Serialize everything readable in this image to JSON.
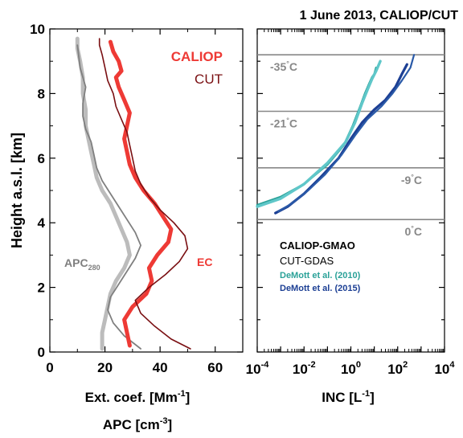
{
  "title": "1 June 2013, CALIOP/CUT",
  "colors": {
    "caliop_ec": "#ee3a35",
    "cut_ec": "#7a0f12",
    "apc_caliop": "#bcbcbc",
    "apc_cut": "#7f7f7f",
    "demott2010": "#2aa198",
    "demott2015": "#1c3f94",
    "isotherm": "#888888"
  },
  "chart_data": [
    {
      "type": "line",
      "panel": "left",
      "ylabel": "Height a.s.l. [km]",
      "xlabel_lines": [
        "Ext. coef. [Mm",
        "-1",
        "]"
      ],
      "xlabel2_lines": [
        "APC [cm",
        "-3",
        "]"
      ],
      "xlim": [
        0,
        70
      ],
      "ylim": [
        0,
        10
      ],
      "x_ticks": [
        "0",
        "20",
        "40",
        "60"
      ],
      "y_ticks": [
        "0",
        "2",
        "4",
        "6",
        "8",
        "10"
      ],
      "legend": [
        "CALIOP",
        "CUT"
      ],
      "annotations": {
        "ec": "EC",
        "apc": "APC",
        "apc_sub": "280"
      },
      "series": [
        {
          "name": "CALIOP",
          "role": "ec_caliop",
          "x": [
            29,
            28,
            27,
            30,
            35,
            37,
            36,
            39,
            43,
            44,
            41,
            38,
            34,
            31,
            29,
            28,
            27,
            28,
            29,
            27,
            25,
            24,
            26,
            25,
            23,
            22
          ],
          "y": [
            0.2,
            0.6,
            1.0,
            1.4,
            1.8,
            2.2,
            2.6,
            3.0,
            3.4,
            3.8,
            4.2,
            4.6,
            5.0,
            5.4,
            5.8,
            6.2,
            6.6,
            7.0,
            7.4,
            7.8,
            8.2,
            8.5,
            8.7,
            9.0,
            9.3,
            9.6
          ]
        },
        {
          "name": "CUT",
          "role": "ec_cut",
          "x": [
            51,
            44,
            38,
            33,
            31,
            36,
            42,
            47,
            50,
            49,
            45,
            40,
            36,
            33,
            31,
            30,
            29,
            28,
            26,
            24,
            23,
            21,
            20,
            19,
            18,
            18
          ],
          "y": [
            0.1,
            0.4,
            0.8,
            1.2,
            1.6,
            2.0,
            2.4,
            2.8,
            3.2,
            3.6,
            4.0,
            4.4,
            4.8,
            5.2,
            5.6,
            6.0,
            6.4,
            6.8,
            7.2,
            7.6,
            8.0,
            8.4,
            8.8,
            9.2,
            9.5,
            9.7
          ]
        },
        {
          "name": "APC CALIOP",
          "role": "apc_caliop",
          "x": [
            19,
            19,
            20,
            21,
            22,
            24,
            27,
            29,
            28,
            26,
            24,
            22,
            19,
            17,
            16,
            15,
            14,
            13,
            13,
            12,
            12,
            11,
            10,
            10
          ],
          "y": [
            0.1,
            0.6,
            1.0,
            1.4,
            1.8,
            2.2,
            2.6,
            3.0,
            3.4,
            3.8,
            4.2,
            4.6,
            5.0,
            5.4,
            5.8,
            6.2,
            6.6,
            7.0,
            7.5,
            8.0,
            8.5,
            9.0,
            9.4,
            9.7
          ]
        },
        {
          "name": "APC CUT",
          "role": "apc_cut",
          "x": [
            33,
            27,
            23,
            21,
            22,
            25,
            28,
            31,
            33,
            31,
            28,
            25,
            22,
            19,
            17,
            16,
            15,
            13,
            12,
            12,
            13,
            11,
            10
          ],
          "y": [
            0.1,
            0.5,
            0.9,
            1.3,
            1.7,
            2.1,
            2.5,
            2.9,
            3.3,
            3.7,
            4.1,
            4.5,
            4.9,
            5.3,
            5.7,
            6.1,
            6.5,
            6.9,
            7.3,
            7.7,
            8.2,
            8.8,
            9.5
          ]
        }
      ]
    },
    {
      "type": "line",
      "panel": "right",
      "xlabel_lines": [
        "INC [L",
        "-1",
        "]"
      ],
      "x_scale": "log",
      "xlim": [
        0.0001,
        10000
      ],
      "ylim": [
        0,
        10
      ],
      "x_tick_exponents": [
        "-4",
        "-2",
        "0",
        "2",
        "4"
      ],
      "isotherms": [
        {
          "height_km": 9.2,
          "label_base": "-35",
          "label_unit": "C"
        },
        {
          "height_km": 7.45,
          "label_base": "-21",
          "label_unit": "C"
        },
        {
          "height_km": 5.7,
          "label_base": "-9",
          "label_unit": "C"
        },
        {
          "height_km": 4.1,
          "label_base": "0",
          "label_unit": "C"
        }
      ],
      "legend": [
        "CALIOP-GMAO",
        "CUT-GDAS",
        "DeMott et al. (2010)",
        "DeMott et al. (2015)"
      ],
      "series": [
        {
          "name": "DeMott et al. (2010) CALIOP",
          "role": "d10a",
          "x": [
            0.0001,
            0.001,
            0.01,
            0.1,
            0.5,
            1.2,
            2.5,
            4,
            6,
            8,
            10,
            12
          ],
          "y": [
            4.55,
            4.8,
            5.2,
            5.8,
            6.4,
            7.0,
            7.6,
            8.0,
            8.3,
            8.5,
            8.6,
            8.8
          ]
        },
        {
          "name": "DeMott et al. (2010) CUT",
          "role": "d10b",
          "x": [
            0.0001,
            0.001,
            0.01,
            0.1,
            0.6,
            1.5,
            3,
            5,
            8,
            12,
            18
          ],
          "y": [
            4.5,
            4.75,
            5.2,
            5.85,
            6.5,
            7.1,
            7.7,
            8.1,
            8.45,
            8.7,
            9.0
          ]
        },
        {
          "name": "DeMott et al. (2015) CALIOP",
          "role": "d15a",
          "x": [
            0.0006,
            0.002,
            0.01,
            0.05,
            0.3,
            1,
            3,
            10,
            30,
            80,
            150,
            250
          ],
          "y": [
            4.3,
            4.5,
            4.9,
            5.4,
            6.0,
            6.6,
            7.1,
            7.5,
            7.8,
            8.2,
            8.6,
            8.9
          ]
        },
        {
          "name": "DeMott et al. (2015) CUT",
          "role": "d15b",
          "x": [
            0.0008,
            0.003,
            0.015,
            0.08,
            0.4,
            1.5,
            5,
            20,
            60,
            150,
            350,
            500
          ],
          "y": [
            4.35,
            4.6,
            5.0,
            5.5,
            6.1,
            6.7,
            7.2,
            7.6,
            8.0,
            8.4,
            8.8,
            9.2
          ]
        }
      ]
    }
  ]
}
